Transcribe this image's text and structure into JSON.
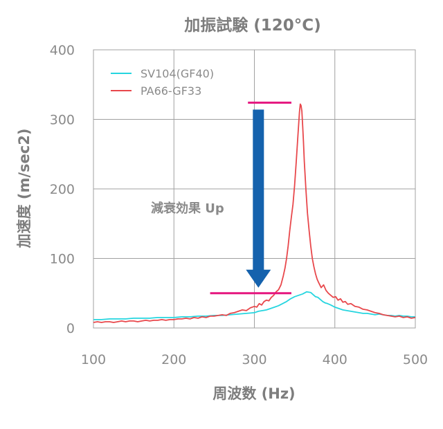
{
  "chart_data": {
    "type": "line",
    "title": "加振試験 (120°C)",
    "xlabel": "周波数 (Hz)",
    "ylabel": "加速度 (m/sec2)",
    "xlim": [
      100,
      500
    ],
    "ylim": [
      0,
      400
    ],
    "xticks": [
      100,
      200,
      300,
      400,
      500
    ],
    "yticks": [
      0,
      100,
      200,
      300,
      400
    ],
    "grid": true,
    "legend_position": "top-left",
    "series": [
      {
        "name": "SV104(GF40)",
        "color": "#25d5df",
        "x": [
          100,
          110,
          120,
          130,
          140,
          150,
          160,
          170,
          180,
          190,
          200,
          210,
          220,
          230,
          240,
          250,
          260,
          270,
          280,
          290,
          300,
          305,
          310,
          315,
          320,
          325,
          330,
          335,
          340,
          345,
          350,
          355,
          360,
          365,
          370,
          373,
          376,
          379,
          382,
          385,
          388,
          391,
          395,
          400,
          405,
          410,
          415,
          420,
          425,
          430,
          435,
          440,
          445,
          450,
          455,
          460,
          465,
          470,
          475,
          480,
          485,
          490,
          495,
          500
        ],
        "y": [
          12,
          12,
          13,
          13,
          13,
          14,
          14,
          14,
          15,
          15,
          15,
          16,
          16,
          17,
          17,
          18,
          18,
          19,
          20,
          21,
          22,
          24,
          25,
          26,
          28,
          30,
          32,
          35,
          38,
          42,
          45,
          47,
          49,
          52,
          51,
          48,
          45,
          44,
          41,
          38,
          36,
          35,
          33,
          30,
          28,
          26,
          25,
          24,
          23,
          22,
          21,
          21,
          20,
          19,
          20,
          19,
          18,
          18,
          17,
          18,
          17,
          17,
          16,
          16
        ]
      },
      {
        "name": "PA66-GF33",
        "color": "#e8474b",
        "x": [
          100,
          105,
          110,
          115,
          120,
          125,
          130,
          135,
          140,
          145,
          150,
          155,
          160,
          165,
          170,
          175,
          180,
          185,
          190,
          195,
          200,
          205,
          210,
          215,
          220,
          225,
          230,
          235,
          240,
          245,
          250,
          255,
          260,
          265,
          270,
          275,
          280,
          285,
          290,
          295,
          300,
          303,
          306,
          309,
          312,
          315,
          318,
          321,
          324,
          327,
          330,
          333,
          336,
          338,
          340,
          342,
          344,
          346,
          348,
          350,
          352,
          354,
          356,
          357,
          358,
          359,
          360,
          361,
          362,
          364,
          366,
          368,
          370,
          372,
          374,
          376,
          378,
          380,
          383,
          386,
          389,
          392,
          395,
          398,
          401,
          404,
          407,
          410,
          413,
          416,
          420,
          425,
          430,
          435,
          440,
          445,
          450,
          455,
          460,
          465,
          470,
          475,
          480,
          485,
          490,
          495,
          500
        ],
        "y": [
          8,
          9,
          8,
          9,
          9,
          8,
          9,
          10,
          9,
          10,
          10,
          9,
          10,
          11,
          10,
          11,
          11,
          12,
          11,
          12,
          12,
          13,
          13,
          14,
          13,
          15,
          14,
          16,
          15,
          17,
          17,
          18,
          19,
          18,
          21,
          22,
          24,
          26,
          25,
          29,
          31,
          30,
          35,
          33,
          38,
          40,
          39,
          44,
          47,
          52,
          55,
          62,
          75,
          86,
          100,
          118,
          140,
          160,
          178,
          205,
          238,
          275,
          310,
          322,
          320,
          312,
          290,
          268,
          240,
          200,
          165,
          140,
          118,
          100,
          88,
          78,
          70,
          65,
          58,
          62,
          54,
          50,
          47,
          44,
          45,
          40,
          42,
          37,
          38,
          34,
          35,
          31,
          30,
          27,
          26,
          24,
          22,
          21,
          19,
          18,
          17,
          16,
          17,
          15,
          16,
          14,
          15
        ]
      }
    ],
    "annotation": {
      "text": "減衰効果 Up",
      "reference_levels": [
        324,
        50
      ],
      "reference_color": "#e5167f",
      "arrow_color": "#1562ad"
    }
  }
}
